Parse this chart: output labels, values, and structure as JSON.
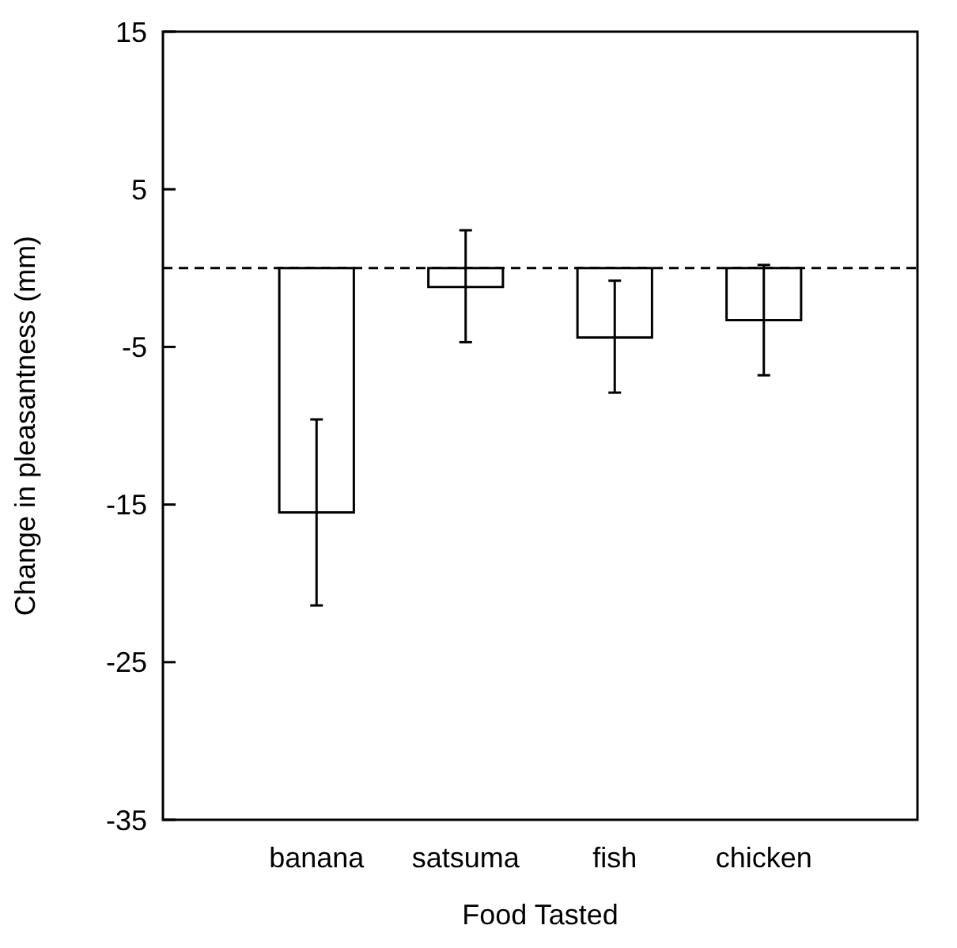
{
  "chart_data": {
    "type": "bar",
    "xlabel": "Food Tasted",
    "ylabel": "Change in pleasantness (mm)",
    "categories": [
      "banana",
      "satsuma",
      "fish",
      "chicken"
    ],
    "values": [
      -15.5,
      -1.2,
      -4.4,
      -3.3
    ],
    "errors": [
      [
        -21.4,
        -9.6
      ],
      [
        -4.7,
        2.4
      ],
      [
        -7.9,
        -0.8
      ],
      [
        -6.8,
        0.2
      ]
    ],
    "color": "#ffffff",
    "ylim": [
      -35,
      15
    ],
    "yticks": [
      -35,
      -25,
      -15,
      -5,
      5,
      15
    ],
    "ref_lines": [
      {
        "axis": "y",
        "value": 0,
        "line_style": "dashed",
        "color": "#000000"
      }
    ],
    "grid": false
  }
}
